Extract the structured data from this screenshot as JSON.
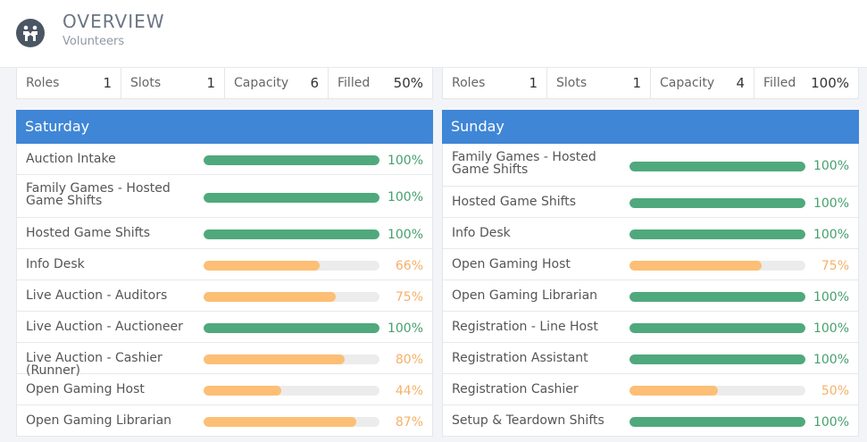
{
  "header": {
    "title": "OVERVIEW",
    "subtitle": "Volunteers",
    "icon": "volunteers-icon"
  },
  "colors": {
    "accent": "#3f86d6",
    "complete": "#4fa97c",
    "partial": "#fcbf75"
  },
  "columns": [
    {
      "stats": [
        {
          "label": "Roles",
          "value": "1"
        },
        {
          "label": "Slots",
          "value": "1"
        },
        {
          "label": "Capacity",
          "value": "6"
        },
        {
          "label": "Filled",
          "value": "50%"
        }
      ],
      "day": "Saturday",
      "rows": [
        {
          "name": "Auction Intake",
          "pct": "100%",
          "fill": 1.0
        },
        {
          "name": "Family Games - Hosted Game Shifts",
          "pct": "100%",
          "fill": 1.0
        },
        {
          "name": "Hosted Game Shifts",
          "pct": "100%",
          "fill": 1.0
        },
        {
          "name": "Info Desk",
          "pct": "66%",
          "fill": 0.66
        },
        {
          "name": "Live Auction - Auditors",
          "pct": "75%",
          "fill": 0.75
        },
        {
          "name": "Live Auction - Auctioneer",
          "pct": "100%",
          "fill": 1.0
        },
        {
          "name": "Live Auction - Cashier (Runner)",
          "pct": "80%",
          "fill": 0.8
        },
        {
          "name": "Open Gaming Host",
          "pct": "44%",
          "fill": 0.44
        },
        {
          "name": "Open Gaming Librarian",
          "pct": "87%",
          "fill": 0.87
        }
      ]
    },
    {
      "stats": [
        {
          "label": "Roles",
          "value": "1"
        },
        {
          "label": "Slots",
          "value": "1"
        },
        {
          "label": "Capacity",
          "value": "4"
        },
        {
          "label": "Filled",
          "value": "100%"
        }
      ],
      "day": "Sunday",
      "rows": [
        {
          "name": "Family Games - Hosted Game Shifts",
          "pct": "100%",
          "fill": 1.0
        },
        {
          "name": "Hosted Game Shifts",
          "pct": "100%",
          "fill": 1.0
        },
        {
          "name": "Info Desk",
          "pct": "100%",
          "fill": 1.0
        },
        {
          "name": "Open Gaming Host",
          "pct": "75%",
          "fill": 0.75
        },
        {
          "name": "Open Gaming Librarian",
          "pct": "100%",
          "fill": 1.0
        },
        {
          "name": "Registration - Line Host",
          "pct": "100%",
          "fill": 1.0
        },
        {
          "name": "Registration Assistant",
          "pct": "100%",
          "fill": 1.0
        },
        {
          "name": "Registration Cashier",
          "pct": "50%",
          "fill": 0.5
        },
        {
          "name": "Setup & Teardown Shifts",
          "pct": "100%",
          "fill": 1.0
        }
      ]
    }
  ]
}
